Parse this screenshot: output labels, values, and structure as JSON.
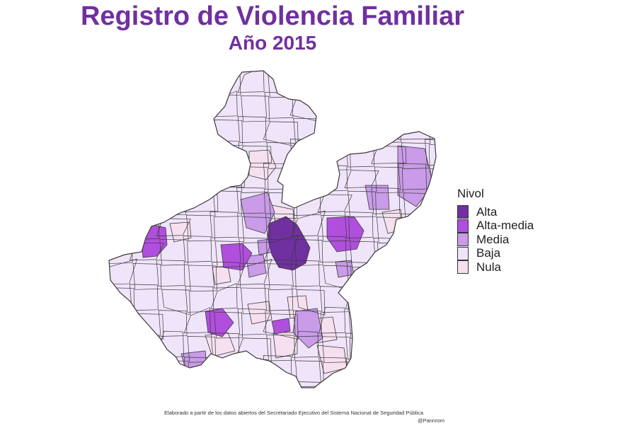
{
  "title": "Registro de Violencia Familiar",
  "subtitle": "Año 2015",
  "title_color": "#7030a0",
  "legend": {
    "title": "Nivol",
    "items": [
      {
        "key": "alta",
        "label": "Alta",
        "color": "#7030a0"
      },
      {
        "key": "alta_media",
        "label": "Alta-media",
        "color": "#b04fdd"
      },
      {
        "key": "media",
        "label": "Media",
        "color": "#c99be8"
      },
      {
        "key": "baja",
        "label": "Baja",
        "color": "#f0e4fa"
      },
      {
        "key": "nula",
        "label": "Nula",
        "color": "#f6e0ef"
      }
    ]
  },
  "border_color": "#3a3a3a",
  "caption": "Elaborado a partir de los datos abiertos del Secretariado Ejecutivo del Sistema Nacional de Seguridad Pública",
  "credit": "@Pannrom"
}
